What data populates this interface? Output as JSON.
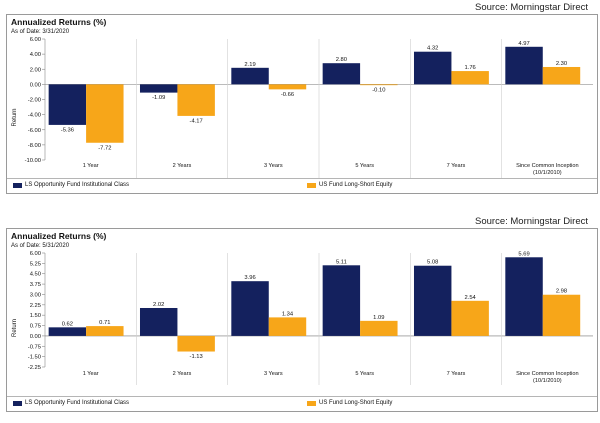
{
  "colors": {
    "fund": "#14215e",
    "benchmark": "#f7a619"
  },
  "chart_data": [
    {
      "type": "bar",
      "source": "Source: Morningstar Direct",
      "title": "Annualized Returns (%)",
      "as_of": "As of Date: 3/31/2020",
      "ylabel": "Return",
      "ylim": [
        -10,
        6
      ],
      "yticks": [
        "-10.00",
        "-8.00",
        "-6.00",
        "-4.00",
        "-2.00",
        "0.00",
        "2.00",
        "4.00",
        "6.00"
      ],
      "categories": [
        "1 Year",
        "2 Years",
        "3 Years",
        "5 Years",
        "7 Years",
        "Since Common Inception (10/1/2010)"
      ],
      "series": [
        {
          "name": "LS Opportunity Fund Institutional Class",
          "values": [
            -5.36,
            -1.09,
            2.19,
            2.8,
            4.32,
            4.97
          ],
          "labels": [
            "-5.36",
            "-1.09",
            "2.19",
            "2.80",
            "4.32",
            "4.97"
          ]
        },
        {
          "name": "US Fund Long-Short Equity",
          "values": [
            -7.72,
            -4.17,
            -0.66,
            -0.1,
            1.76,
            2.3
          ],
          "labels": [
            "-7.72",
            "-4.17",
            "-0.66",
            "-0.10",
            "1.76",
            "2.30"
          ]
        }
      ]
    },
    {
      "type": "bar",
      "source": "Source: Morningstar Direct",
      "title": "Annualized Returns (%)",
      "as_of": "As of Date: 5/31/2020",
      "ylabel": "Return",
      "ylim": [
        -2.25,
        6
      ],
      "yticks": [
        "-2.25",
        "-1.50",
        "-0.75",
        "0.00",
        "0.75",
        "1.50",
        "2.25",
        "3.00",
        "3.75",
        "4.50",
        "5.25",
        "6.00"
      ],
      "categories": [
        "1 Year",
        "2 Years",
        "3 Years",
        "5 Years",
        "7 Years",
        "Since Common Inception (10/1/2010)"
      ],
      "series": [
        {
          "name": "LS Opportunity Fund Institutional Class",
          "values": [
            0.62,
            2.02,
            3.96,
            5.11,
            5.08,
            5.69
          ],
          "labels": [
            "0.62",
            "2.02",
            "3.96",
            "5.11",
            "5.08",
            "5.69"
          ]
        },
        {
          "name": "US Fund Long-Short Equity",
          "values": [
            0.71,
            -1.13,
            1.34,
            1.09,
            2.54,
            2.98
          ],
          "labels": [
            "0.71",
            "-1.13",
            "1.34",
            "1.09",
            "2.54",
            "2.98"
          ]
        }
      ]
    }
  ]
}
